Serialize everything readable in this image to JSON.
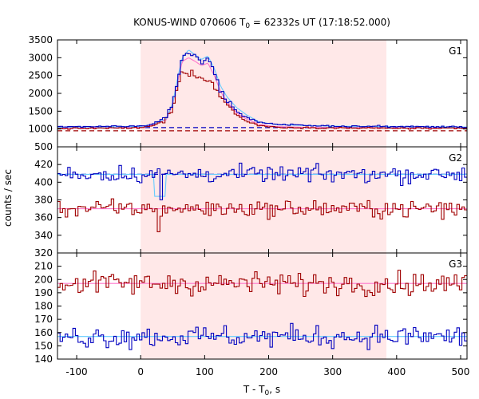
{
  "title": {
    "prefix": "KONUS-WIND 070606 T",
    "subscript": "0",
    "suffix": " = 62332s UT (17:18:52.000)"
  },
  "ylabel": "counts / sec",
  "xlabel": {
    "prefix": "T - T",
    "subscript": "0",
    "suffix": ", s"
  },
  "colors": {
    "red_curve": "#a00000",
    "blue_curve": "#0000c0",
    "light_blue": "#66ccff",
    "pink": "#ff77cc",
    "shade": "#ffe8e8"
  },
  "chart_data": {
    "type": "line",
    "x_range": [
      -130,
      510
    ],
    "x_ticks": [
      -100,
      0,
      100,
      200,
      300,
      400,
      500
    ],
    "shaded_interval": [
      0,
      384
    ],
    "panels": [
      {
        "label": "G1",
        "ylim": [
          500,
          3500
        ],
        "y_ticks": [
          500,
          1000,
          1500,
          2000,
          2500,
          3000,
          3500
        ],
        "background_levels": {
          "blue": 1040,
          "red": 980
        },
        "anchors": {
          "blue": [
            [
              -130,
              1060
            ],
            [
              0,
              1080
            ],
            [
              20,
              1150
            ],
            [
              40,
              1300
            ],
            [
              50,
              1700
            ],
            [
              58,
              2400
            ],
            [
              65,
              3050
            ],
            [
              75,
              3150
            ],
            [
              85,
              3050
            ],
            [
              95,
              2900
            ],
            [
              105,
              2950
            ],
            [
              115,
              2600
            ],
            [
              125,
              2100
            ],
            [
              135,
              1800
            ],
            [
              150,
              1500
            ],
            [
              165,
              1320
            ],
            [
              185,
              1200
            ],
            [
              210,
              1140
            ],
            [
              250,
              1100
            ],
            [
              300,
              1080
            ],
            [
              400,
              1070
            ],
            [
              510,
              1060
            ]
          ],
          "red": [
            [
              -130,
              1010
            ],
            [
              0,
              1030
            ],
            [
              20,
              1100
            ],
            [
              40,
              1250
            ],
            [
              50,
              1600
            ],
            [
              58,
              2200
            ],
            [
              65,
              2620
            ],
            [
              75,
              2600
            ],
            [
              85,
              2520
            ],
            [
              95,
              2450
            ],
            [
              105,
              2400
            ],
            [
              115,
              2200
            ],
            [
              125,
              1900
            ],
            [
              135,
              1700
            ],
            [
              150,
              1400
            ],
            [
              165,
              1220
            ],
            [
              185,
              1100
            ],
            [
              210,
              1050
            ],
            [
              250,
              1040
            ],
            [
              300,
              1030
            ],
            [
              400,
              1020
            ],
            [
              510,
              1010
            ]
          ],
          "light_blue": [
            [
              -130,
              1050
            ],
            [
              0,
              1070
            ],
            [
              20,
              1140
            ],
            [
              40,
              1290
            ],
            [
              50,
              1720
            ],
            [
              58,
              2450
            ],
            [
              65,
              3000
            ],
            [
              75,
              3220
            ],
            [
              85,
              3080
            ],
            [
              95,
              2950
            ],
            [
              105,
              3050
            ],
            [
              115,
              2700
            ],
            [
              125,
              2200
            ],
            [
              135,
              1900
            ],
            [
              150,
              1600
            ],
            [
              165,
              1400
            ],
            [
              185,
              1200
            ],
            [
              210,
              1130
            ],
            [
              250,
              1100
            ],
            [
              300,
              1080
            ],
            [
              400,
              1065
            ],
            [
              510,
              1055
            ]
          ],
          "pink": [
            [
              -130,
              1020
            ],
            [
              0,
              1040
            ],
            [
              20,
              1110
            ],
            [
              40,
              1260
            ],
            [
              50,
              1680
            ],
            [
              58,
              2350
            ],
            [
              65,
              2900
            ],
            [
              75,
              3000
            ],
            [
              85,
              2900
            ],
            [
              95,
              2780
            ],
            [
              105,
              2850
            ],
            [
              115,
              2500
            ],
            [
              125,
              2050
            ],
            [
              135,
              1750
            ],
            [
              150,
              1450
            ],
            [
              165,
              1280
            ],
            [
              185,
              1130
            ],
            [
              210,
              1070
            ],
            [
              250,
              1050
            ],
            [
              300,
              1040
            ],
            [
              400,
              1030
            ],
            [
              510,
              1025
            ]
          ]
        },
        "step_series": [
          "red",
          "blue"
        ],
        "smooth_series": [
          "pink",
          "light_blue"
        ],
        "dashed_series": []
      },
      {
        "label": "G2",
        "ylim": [
          320,
          440
        ],
        "y_ticks": [
          320,
          340,
          360,
          380,
          400,
          420,
          440
        ],
        "background_levels": {
          "blue": 409,
          "red": 370
        },
        "features": {
          "blue_dip_at": 30,
          "blue_dip_value": 380,
          "red_dip_at": 28,
          "red_dip_value": 344
        },
        "step_series": [
          "red",
          "blue"
        ],
        "smooth_series": [
          "pink",
          "light_blue"
        ],
        "dashed_series": [
          "blue"
        ]
      },
      {
        "label": "G3",
        "ylim": [
          140,
          220
        ],
        "y_ticks": [
          140,
          150,
          160,
          170,
          180,
          190,
          200,
          210,
          220
        ],
        "background_levels": {
          "red": 197,
          "blue": 157
        },
        "step_series": [
          "red",
          "blue"
        ],
        "smooth_series": [
          "pink",
          "light_blue"
        ],
        "dashed_series": []
      }
    ]
  }
}
